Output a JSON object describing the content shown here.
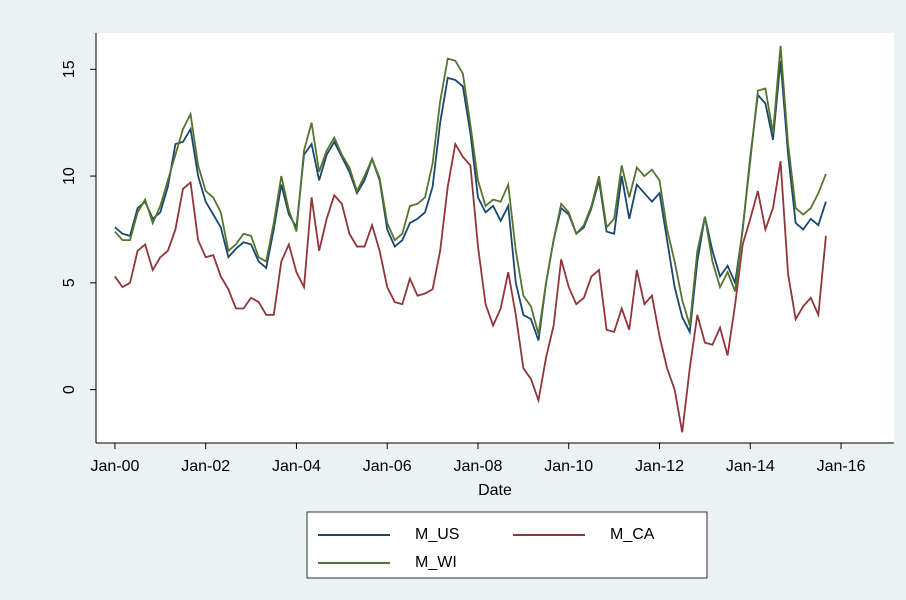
{
  "chart_data": {
    "type": "line",
    "x_label": "Date",
    "x": [
      "2000-01",
      "2000-03",
      "2000-05",
      "2000-07",
      "2000-09",
      "2000-11",
      "2001-01",
      "2001-03",
      "2001-05",
      "2001-07",
      "2001-09",
      "2001-11",
      "2002-01",
      "2002-03",
      "2002-05",
      "2002-07",
      "2002-09",
      "2002-11",
      "2003-01",
      "2003-03",
      "2003-05",
      "2003-07",
      "2003-09",
      "2003-11",
      "2004-01",
      "2004-03",
      "2004-05",
      "2004-07",
      "2004-09",
      "2004-11",
      "2005-01",
      "2005-03",
      "2005-05",
      "2005-07",
      "2005-09",
      "2005-11",
      "2006-01",
      "2006-03",
      "2006-05",
      "2006-07",
      "2006-09",
      "2006-11",
      "2007-01",
      "2007-03",
      "2007-05",
      "2007-07",
      "2007-09",
      "2007-11",
      "2008-01",
      "2008-03",
      "2008-05",
      "2008-07",
      "2008-09",
      "2008-11",
      "2009-01",
      "2009-03",
      "2009-05",
      "2009-07",
      "2009-09",
      "2009-11",
      "2010-01",
      "2010-03",
      "2010-05",
      "2010-07",
      "2010-09",
      "2010-11",
      "2011-01",
      "2011-03",
      "2011-05",
      "2011-07",
      "2011-09",
      "2011-11",
      "2012-01",
      "2012-03",
      "2012-05",
      "2012-07",
      "2012-09",
      "2012-11",
      "2013-01",
      "2013-03",
      "2013-05",
      "2013-07",
      "2013-09",
      "2013-11",
      "2014-01",
      "2014-03",
      "2014-05",
      "2014-07",
      "2014-09",
      "2014-11",
      "2015-01",
      "2015-03",
      "2015-05",
      "2015-07",
      "2015-09"
    ],
    "series": [
      {
        "name": "M_US",
        "color": "#1a476f",
        "values": [
          7.6,
          7.3,
          7.2,
          8.5,
          8.8,
          8.0,
          8.3,
          9.5,
          11.5,
          11.6,
          12.2,
          10.0,
          8.8,
          8.2,
          7.6,
          6.2,
          6.6,
          6.9,
          6.8,
          6.0,
          5.7,
          7.5,
          9.6,
          8.2,
          7.6,
          11.0,
          11.5,
          9.8,
          11.0,
          11.6,
          10.9,
          10.2,
          9.2,
          9.8,
          10.8,
          9.8,
          7.5,
          6.7,
          7.0,
          7.8,
          8.0,
          8.3,
          9.5,
          12.5,
          14.6,
          14.5,
          14.2,
          12.0,
          9.0,
          8.3,
          8.6,
          7.9,
          8.6,
          5.0,
          3.5,
          3.3,
          2.3,
          5.0,
          7.0,
          8.5,
          8.2,
          7.3,
          7.6,
          8.5,
          9.8,
          7.4,
          7.3,
          10.0,
          8.0,
          9.6,
          9.2,
          8.8,
          9.2,
          7.0,
          4.8,
          3.4,
          2.7,
          6.0,
          8.1,
          6.5,
          5.3,
          5.8,
          5.0,
          7.5,
          10.9,
          13.8,
          13.4,
          11.7,
          15.4,
          11.0,
          7.8,
          7.5,
          8.0,
          7.7,
          8.8
        ]
      },
      {
        "name": "M_CA",
        "color": "#90353b",
        "values": [
          5.3,
          4.8,
          5.0,
          6.5,
          6.8,
          5.6,
          6.2,
          6.5,
          7.5,
          9.4,
          9.7,
          7.0,
          6.2,
          6.3,
          5.3,
          4.7,
          3.8,
          3.8,
          4.3,
          4.1,
          3.5,
          3.5,
          6.0,
          6.8,
          5.5,
          4.8,
          9.0,
          6.5,
          8.0,
          9.1,
          8.7,
          7.3,
          6.7,
          6.7,
          7.7,
          6.5,
          4.8,
          4.1,
          4.0,
          5.2,
          4.4,
          4.5,
          4.7,
          6.5,
          9.5,
          11.5,
          10.9,
          10.5,
          6.7,
          4.0,
          3.0,
          3.8,
          5.5,
          3.5,
          1.0,
          0.5,
          -0.5,
          1.5,
          3.0,
          6.1,
          4.8,
          4.0,
          4.3,
          5.3,
          5.6,
          2.8,
          2.7,
          3.8,
          2.8,
          5.6,
          4.0,
          4.4,
          2.5,
          1.0,
          0.0,
          -2.0,
          1.0,
          3.5,
          2.2,
          2.1,
          2.9,
          1.6,
          4.0,
          6.8,
          8.0,
          9.3,
          7.5,
          8.5,
          10.7,
          5.4,
          3.3,
          3.9,
          4.3,
          3.5,
          7.2
        ]
      },
      {
        "name": "M_WI",
        "color": "#55752f",
        "values": [
          7.4,
          7.0,
          7.0,
          8.3,
          8.9,
          7.8,
          8.6,
          9.8,
          11.0,
          12.2,
          12.9,
          10.5,
          9.3,
          9.0,
          8.3,
          6.5,
          6.8,
          7.3,
          7.2,
          6.2,
          6.0,
          7.8,
          10.0,
          8.4,
          7.4,
          11.2,
          12.5,
          10.2,
          11.2,
          11.8,
          11.0,
          10.4,
          9.3,
          10.0,
          10.8,
          9.9,
          7.8,
          7.0,
          7.3,
          8.6,
          8.7,
          9.0,
          10.6,
          13.5,
          15.5,
          15.4,
          14.8,
          12.4,
          9.8,
          8.6,
          8.9,
          8.8,
          9.6,
          6.5,
          4.4,
          3.9,
          2.6,
          5.0,
          7.0,
          8.7,
          8.3,
          7.3,
          7.7,
          8.6,
          10.0,
          7.6,
          8.0,
          10.5,
          9.0,
          10.4,
          10.0,
          10.3,
          9.8,
          7.5,
          6.0,
          4.2,
          3.0,
          6.5,
          8.1,
          6.0,
          4.8,
          5.5,
          4.6,
          7.6,
          10.7,
          14.0,
          14.1,
          12.0,
          16.1,
          11.5,
          8.5,
          8.2,
          8.5,
          9.2,
          10.1
        ]
      }
    ],
    "xlim": [
      "1999-08",
      "2017-03"
    ],
    "xticks": [
      {
        "value": "2000-01",
        "label": "Jan-00"
      },
      {
        "value": "2002-01",
        "label": "Jan-02"
      },
      {
        "value": "2004-01",
        "label": "Jan-04"
      },
      {
        "value": "2006-01",
        "label": "Jan-06"
      },
      {
        "value": "2008-01",
        "label": "Jan-08"
      },
      {
        "value": "2010-01",
        "label": "Jan-10"
      },
      {
        "value": "2012-01",
        "label": "Jan-12"
      },
      {
        "value": "2014-01",
        "label": "Jan-14"
      },
      {
        "value": "2016-01",
        "label": "Jan-16"
      }
    ],
    "ylim": [
      -2.5,
      16.7
    ],
    "yticks": [
      0,
      5,
      10,
      15
    ],
    "grid": false,
    "legend": "bottom"
  }
}
